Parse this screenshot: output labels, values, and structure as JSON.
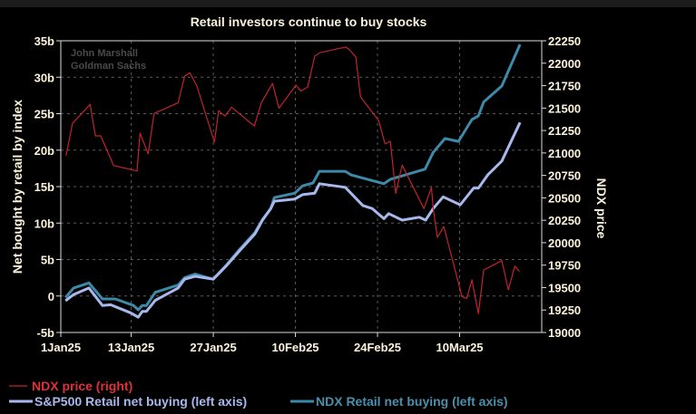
{
  "chart_data": {
    "type": "line",
    "title": "Retail investors continue to buy stocks",
    "watermark": [
      "John Marshall",
      "Goldman Sachs"
    ],
    "ylabel_left": "Net bought by retail by index",
    "ylabel_right": "NDX price",
    "x_unit": "days since 1 Jan 2025",
    "xlim": [
      0,
      82
    ],
    "x_ticks": [
      {
        "day": 0,
        "label": "1Jan25"
      },
      {
        "day": 12,
        "label": "13Jan25"
      },
      {
        "day": 26,
        "label": "27Jan25"
      },
      {
        "day": 40,
        "label": "10Feb25"
      },
      {
        "day": 54,
        "label": "24Feb25"
      },
      {
        "day": 68,
        "label": "10Mar25"
      }
    ],
    "ylim_left": [
      -5,
      35
    ],
    "y_ticks_left": [
      {
        "v": 35,
        "label": "35b"
      },
      {
        "v": 30,
        "label": "30b"
      },
      {
        "v": 25,
        "label": "25b"
      },
      {
        "v": 20,
        "label": "20b"
      },
      {
        "v": 15,
        "label": "15b"
      },
      {
        "v": 10,
        "label": "10b"
      },
      {
        "v": 5,
        "label": "5b"
      },
      {
        "v": 0,
        "label": "0"
      },
      {
        "v": -5,
        "label": "-5b"
      }
    ],
    "ylim_right": [
      19000,
      22250
    ],
    "y_ticks_right": [
      22250,
      22000,
      21750,
      21500,
      21250,
      21000,
      20750,
      20500,
      20250,
      20000,
      19750,
      19500,
      19250,
      19000
    ],
    "grid": true,
    "legend_position": "bottom-left",
    "series": [
      {
        "name": "NDX price (right)",
        "axis": "right",
        "color": "#c0242b",
        "text_color": "#e0303a",
        "width": 1.2,
        "points": [
          [
            0.9,
            20970
          ],
          [
            2.0,
            21330
          ],
          [
            5.0,
            21540
          ],
          [
            5.9,
            21190
          ],
          [
            6.8,
            21190
          ],
          [
            9.0,
            20860
          ],
          [
            13.0,
            20800
          ],
          [
            13.5,
            21220
          ],
          [
            14.9,
            20990
          ],
          [
            15.9,
            21440
          ],
          [
            20.0,
            21560
          ],
          [
            21.1,
            21855
          ],
          [
            22.0,
            21895
          ],
          [
            23.2,
            21745
          ],
          [
            26.2,
            21120
          ],
          [
            26.9,
            21470
          ],
          [
            28.0,
            21410
          ],
          [
            29.1,
            21510
          ],
          [
            33.0,
            21300
          ],
          [
            34.2,
            21560
          ],
          [
            36.1,
            21775
          ],
          [
            37.2,
            21500
          ],
          [
            40.1,
            21755
          ],
          [
            40.9,
            21690
          ],
          [
            42.1,
            21735
          ],
          [
            43.3,
            22080
          ],
          [
            44.3,
            22120
          ],
          [
            48.6,
            22180
          ],
          [
            49.2,
            22150
          ],
          [
            50.3,
            22070
          ],
          [
            51.1,
            21625
          ],
          [
            54.2,
            21360
          ],
          [
            55.3,
            21100
          ],
          [
            56.2,
            21130
          ],
          [
            57.1,
            20550
          ],
          [
            58.2,
            20865
          ],
          [
            61.9,
            20380
          ],
          [
            63.2,
            20615
          ],
          [
            63.5,
            20380
          ],
          [
            64.2,
            20060
          ],
          [
            65.3,
            20180
          ],
          [
            68.4,
            19400
          ],
          [
            69.2,
            19380
          ],
          [
            70.1,
            19585
          ],
          [
            71.2,
            19210
          ],
          [
            72.1,
            19695
          ],
          [
            75.2,
            19800
          ],
          [
            76.3,
            19475
          ],
          [
            77.4,
            19740
          ],
          [
            78.2,
            19680
          ]
        ]
      },
      {
        "name": "S&P500 Retail net buying (left axis)",
        "axis": "left",
        "color": "#a8b8ec",
        "text_color": "#a8b8ec",
        "width": 3,
        "points": [
          [
            0.8,
            -0.65
          ],
          [
            2.2,
            0.2
          ],
          [
            4.8,
            1.1
          ],
          [
            7.1,
            -1.3
          ],
          [
            8.5,
            -1.2
          ],
          [
            11.9,
            -2.3
          ],
          [
            13.2,
            -2.9
          ],
          [
            13.9,
            -2.1
          ],
          [
            14.6,
            -2.1
          ],
          [
            16.1,
            -0.6
          ],
          [
            20.0,
            1.1
          ],
          [
            21.1,
            2.3
          ],
          [
            22.9,
            2.7
          ],
          [
            26.0,
            2.3
          ],
          [
            28.3,
            4.2
          ],
          [
            30.5,
            6.2
          ],
          [
            33.1,
            8.5
          ],
          [
            34.4,
            10.4
          ],
          [
            35.8,
            12.0
          ],
          [
            36.4,
            13.0
          ],
          [
            39.9,
            13.3
          ],
          [
            41.2,
            13.9
          ],
          [
            43.3,
            14.1
          ],
          [
            44.1,
            15.4
          ],
          [
            48.5,
            14.9
          ],
          [
            51.5,
            12.4
          ],
          [
            53.1,
            12.0
          ],
          [
            55.1,
            10.6
          ],
          [
            55.9,
            11.3
          ],
          [
            58.2,
            10.4
          ],
          [
            61.1,
            10.8
          ],
          [
            62.2,
            10.4
          ],
          [
            63.5,
            12.0
          ],
          [
            65.2,
            13.6
          ],
          [
            68.1,
            12.5
          ],
          [
            70.4,
            14.8
          ],
          [
            71.2,
            14.8
          ],
          [
            72.8,
            16.6
          ],
          [
            75.2,
            18.5
          ],
          [
            78.3,
            23.8
          ]
        ]
      },
      {
        "name": "NDX Retail net buying (left axis)",
        "axis": "left",
        "color": "#3d8aa8",
        "text_color": "#4a90ac",
        "width": 3,
        "points": [
          [
            0.8,
            -0.2
          ],
          [
            2.2,
            1.1
          ],
          [
            4.8,
            1.8
          ],
          [
            7.1,
            -0.4
          ],
          [
            9.3,
            -0.4
          ],
          [
            12.4,
            -1.3
          ],
          [
            13.2,
            -1.9
          ],
          [
            13.9,
            -1.3
          ],
          [
            14.6,
            -1.3
          ],
          [
            16.1,
            0.5
          ],
          [
            20.0,
            1.5
          ],
          [
            21.1,
            2.5
          ],
          [
            22.9,
            3.0
          ],
          [
            26.0,
            2.3
          ],
          [
            28.3,
            4.3
          ],
          [
            30.5,
            6.4
          ],
          [
            33.1,
            8.7
          ],
          [
            34.4,
            10.5
          ],
          [
            35.8,
            12.0
          ],
          [
            36.4,
            13.5
          ],
          [
            39.9,
            14.1
          ],
          [
            41.2,
            15.1
          ],
          [
            43.0,
            15.5
          ],
          [
            44.1,
            17.1
          ],
          [
            48.5,
            17.1
          ],
          [
            49.5,
            16.6
          ],
          [
            55.1,
            15.4
          ],
          [
            56.2,
            16.0
          ],
          [
            62.1,
            17.4
          ],
          [
            63.5,
            19.7
          ],
          [
            65.5,
            21.6
          ],
          [
            67.8,
            21.2
          ],
          [
            70.1,
            24.2
          ],
          [
            71.2,
            24.7
          ],
          [
            72.1,
            26.6
          ],
          [
            75.2,
            28.8
          ],
          [
            78.3,
            34.5
          ]
        ]
      }
    ]
  }
}
